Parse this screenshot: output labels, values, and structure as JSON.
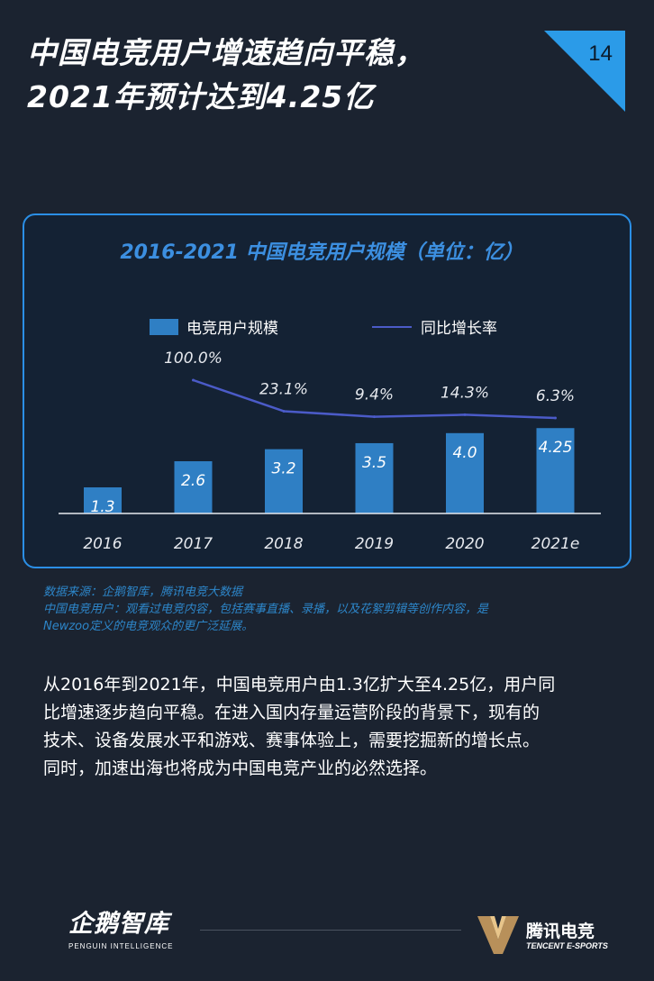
{
  "header": {
    "title_line1": "中国电竞用户增速趋向平稳，",
    "title_line2": "2021年预计达到4.25亿",
    "page_number": "14"
  },
  "chart_data": {
    "type": "bar",
    "title": "2016-2021 中国电竞用户规模（单位：亿）",
    "categories": [
      "2016",
      "2017",
      "2018",
      "2019",
      "2020",
      "2021e"
    ],
    "series": [
      {
        "name": "电竞用户规模",
        "kind": "bar",
        "values": [
          1.3,
          2.6,
          3.2,
          3.5,
          4.0,
          4.25
        ],
        "labels": [
          "1.3",
          "2.6",
          "3.2",
          "3.5",
          "4.0",
          "4.25"
        ],
        "color": "#2f7fc4"
      },
      {
        "name": "同比增长率",
        "kind": "line",
        "values": [
          null,
          100.0,
          23.1,
          9.4,
          14.3,
          6.3
        ],
        "labels": [
          "",
          "100.0%",
          "23.1%",
          "9.4%",
          "14.3%",
          "6.3%"
        ],
        "color": "#4b5bc8"
      }
    ],
    "legend_position": "top",
    "grid": false
  },
  "source": {
    "line1": "数据来源：企鹅智库，腾讯电竞大数据",
    "line2": "中国电竞用户：观看过电竞内容，包括赛事直播、录播，以及花絮剪辑等创作内容，是",
    "line3": "Newzoo定义的电竞观众的更广泛延展。"
  },
  "body": {
    "line1": "从2016年到2021年，中国电竞用户由1.3亿扩大至4.25亿，用户同",
    "line2": "比增速逐步趋向平稳。在进入国内存量运营阶段的背景下，现有的",
    "line3": "技术、设备发展水平和游戏、赛事体验上，需要挖掘新的增长点。",
    "line4": "同时，加速出海也将成为中国电竞产业的必然选择。"
  },
  "footer": {
    "left_logo": "企鹅智库",
    "left_logo_sub": "PENGUIN INTELLIGENCE",
    "right_logo": "腾讯电竞",
    "right_logo_sub": "TENCENT E-SPORTS"
  },
  "colors": {
    "background": "#1b2330",
    "accent": "#2b8fe6",
    "bar": "#2f7fc4",
    "line": "#4b5bc8",
    "chart_title": "#3c8fe0",
    "source_text": "#2d86c9"
  }
}
